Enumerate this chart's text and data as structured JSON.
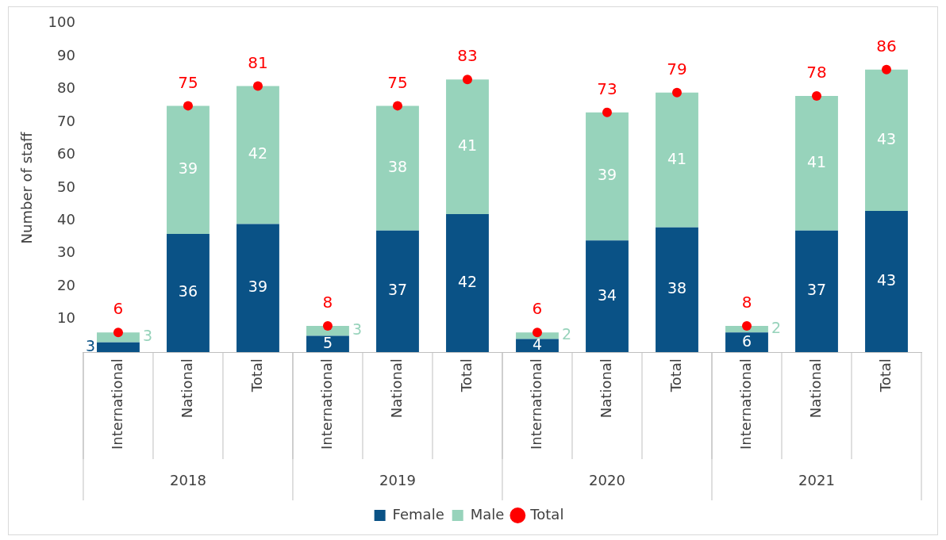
{
  "chart_data": {
    "type": "bar",
    "stacked": true,
    "ylabel": "Number of staff",
    "categories": [
      "International",
      "National",
      "Total",
      "International",
      "National",
      "Total",
      "International",
      "National",
      "Total",
      "International",
      "National",
      "Total"
    ],
    "series": [
      {
        "name": "Female",
        "color": "#0a5286",
        "values": [
          3,
          36,
          39,
          5,
          37,
          42,
          4,
          34,
          38,
          6,
          37,
          43
        ]
      },
      {
        "name": "Male",
        "color": "#97d3bb",
        "values": [
          3,
          39,
          42,
          3,
          38,
          41,
          2,
          39,
          41,
          2,
          41,
          43
        ]
      },
      {
        "name": "Total",
        "type": "scatter",
        "color": "#ff0000",
        "marker": "circle",
        "values": [
          6,
          75,
          81,
          8,
          75,
          83,
          6,
          73,
          79,
          8,
          78,
          86
        ]
      }
    ],
    "ylim": [
      0,
      100
    ],
    "yticks": [
      10,
      20,
      30,
      40,
      50,
      60,
      70,
      80,
      90,
      100
    ],
    "annotations": [
      "2018",
      "2019",
      "2020",
      "2021"
    ],
    "grid": false,
    "legend": "bottom",
    "data_labels": true
  }
}
